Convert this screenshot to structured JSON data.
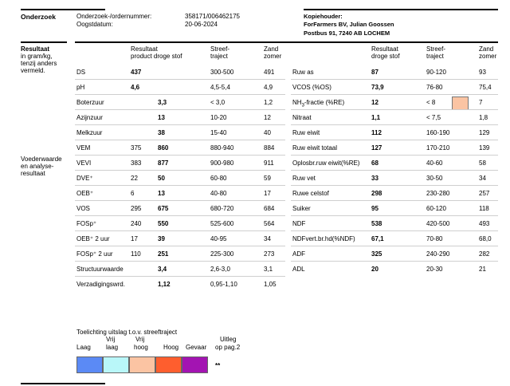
{
  "header": {
    "section": "Onderzoek",
    "order_label": "Onderzoek-/ordernummer:",
    "order_value": "358171/006462175",
    "date_label": "Oogstdatum:",
    "date_value": "20-06-2024",
    "copy_holder_label": "Kopiehouder:",
    "copy_holder_name": "ForFarmers BV, Julian Goossen",
    "copy_holder_address": "Postbus 91, 7240 AB  LOCHEM"
  },
  "left_labels": {
    "result_title": "Resultaat",
    "result_sub": [
      "in gram/kg,",
      "tenzij anders",
      "vermeld."
    ],
    "feed_title": [
      "Voederwaarde",
      "en analyse-",
      "resultaat"
    ]
  },
  "columns_left": {
    "result_a": "Resultaat",
    "result_b": "product droge stof",
    "target_a": "Streef-",
    "target_b": "traject",
    "sand_a": "Zand",
    "sand_b": "zomer"
  },
  "columns_right": {
    "result_a": "Resultaat",
    "result_b": "droge stof",
    "target_a": "Streef-",
    "target_b": "traject",
    "sand_a": "Zand",
    "sand_b": "zomer"
  },
  "left_rows": [
    {
      "name": "DS",
      "product": "437",
      "dry": "",
      "target": "300-500",
      "sand": "491"
    },
    {
      "name": "pH",
      "product": "4,6",
      "dry": "",
      "target": "4,5-5,4",
      "sand": "4,9"
    },
    {
      "name": "Boterzuur",
      "product": "",
      "dry": "3,3",
      "target": "< 3,0",
      "sand": "1,2"
    },
    {
      "name": "Azijnzuur",
      "product": "",
      "dry": "13",
      "target": "10-20",
      "sand": "12"
    },
    {
      "name": "Melkzuur",
      "product": "",
      "dry": "38",
      "target": "15-40",
      "sand": "40"
    },
    {
      "name": "VEM",
      "product": "375",
      "dry": "860",
      "target": "880-940",
      "sand": "884"
    },
    {
      "name": "VEVI",
      "product": "383",
      "dry": "877",
      "target": "900-980",
      "sand": "911"
    },
    {
      "name": "DVE⁺",
      "product": "22",
      "dry": "50",
      "target": "60-80",
      "sand": "59"
    },
    {
      "name": "OEB⁺",
      "product": "6",
      "dry": "13",
      "target": "40-80",
      "sand": "17"
    },
    {
      "name": "VOS",
      "product": "295",
      "dry": "675",
      "target": "680-720",
      "sand": "684"
    },
    {
      "name": "FOSp⁺",
      "product": "240",
      "dry": "550",
      "target": "525-600",
      "sand": "564"
    },
    {
      "name": "OEB⁺ 2 uur",
      "product": "17",
      "dry": "39",
      "target": "40-95",
      "sand": "34"
    },
    {
      "name": "FOSp⁺ 2 uur",
      "product": "110",
      "dry": "251",
      "target": "225-300",
      "sand": "273"
    },
    {
      "name": "Structuurwaarde",
      "product": "",
      "dry": "3,4",
      "target": "2,6-3,0",
      "sand": "3,1"
    },
    {
      "name": "Verzadigingswrd.",
      "product": "",
      "dry": "1,12",
      "target": "0,95-1,10",
      "sand": "1,05"
    }
  ],
  "right_rows": [
    {
      "name": "Ruw as",
      "dry": "87",
      "target": "90-120",
      "sand": "93",
      "flag": ""
    },
    {
      "name": "VCOS (%OS)",
      "dry": "73,9",
      "target": "76-80",
      "sand": "75,4",
      "flag": ""
    },
    {
      "name_pre": "NH",
      "name_sub": "3",
      "name_post": "-fractie (%RE)",
      "dry": "12",
      "target": "< 8",
      "sand": "7",
      "flag": "#fbc4a3"
    },
    {
      "name": "Nitraat",
      "dry": "1,1",
      "target": "< 7,5",
      "sand": "1,8",
      "flag": ""
    },
    {
      "name": "Ruw eiwit",
      "dry": "112",
      "target": "160-190",
      "sand": "129",
      "flag": ""
    },
    {
      "name": "Ruw eiwit totaal",
      "dry": "127",
      "target": "170-210",
      "sand": "139",
      "flag": ""
    },
    {
      "name": "Oplosbr.ruw eiwit(%RE)",
      "dry": "68",
      "target": "40-60",
      "sand": "58",
      "flag": ""
    },
    {
      "name": "Ruw vet",
      "dry": "33",
      "target": "30-50",
      "sand": "34",
      "flag": ""
    },
    {
      "name": "Ruwe celstof",
      "dry": "298",
      "target": "230-280",
      "sand": "257",
      "flag": ""
    },
    {
      "name": "Suiker",
      "dry": "95",
      "target": "60-120",
      "sand": "118",
      "flag": ""
    },
    {
      "name": "NDF",
      "dry": "538",
      "target": "420-500",
      "sand": "493",
      "flag": ""
    },
    {
      "name": "NDFvert.br.hd(%NDF)",
      "dry": "67,1",
      "target": "70-80",
      "sand": "68,0",
      "flag": ""
    },
    {
      "name": "ADF",
      "dry": "325",
      "target": "240-290",
      "sand": "282",
      "flag": ""
    },
    {
      "name": "ADL",
      "dry": "20",
      "target": "20-30",
      "sand": "21",
      "flag": ""
    }
  ],
  "legend": {
    "title": "Toelichting uitslag t.o.v. streeftraject",
    "laag": "Laag",
    "vrij_laag_a": "Vrij",
    "vrij_laag_b": "laag",
    "vrij_hoog_a": "Vrij",
    "vrij_hoog_b": "hoog",
    "hoog": "Hoog",
    "gevaar": "Gevaar",
    "uitleg_a": "Uitleg",
    "uitleg_b": "op pag.2",
    "note": "**",
    "colors": [
      "#5b8af5",
      "#b9f7f9",
      "#fbc4a3",
      "#fe5e2e",
      "#a314b2"
    ]
  }
}
